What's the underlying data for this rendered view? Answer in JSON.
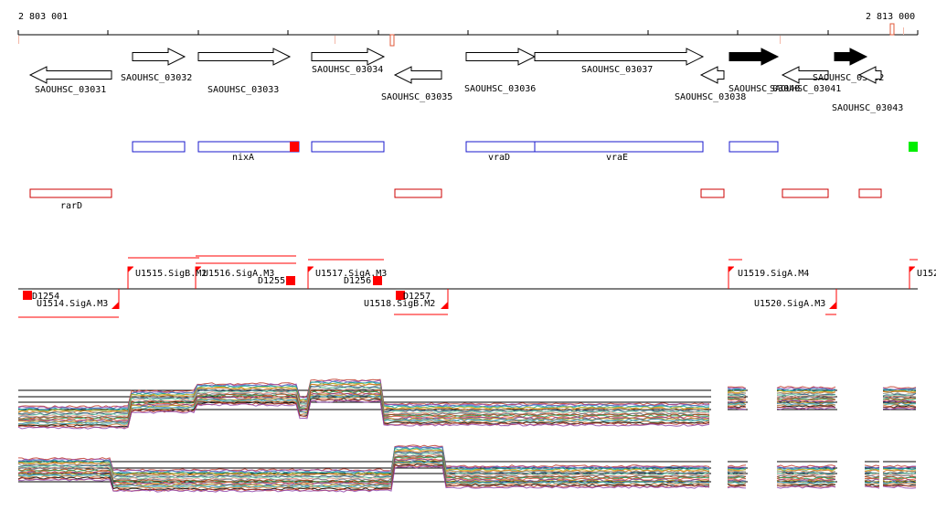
{
  "coords": {
    "start": "2 803 001",
    "end": "2 813 000"
  },
  "colors": {
    "gene_outline": "#000000",
    "gene_fill_open": "#ffffff",
    "gene_fill_solid": "#000000",
    "feature_blue": "#1a1acc",
    "feature_red": "#cc0000",
    "marker_red": "#ff0000",
    "marker_green": "#00ee00",
    "axis": "#000000"
  },
  "genes": [
    {
      "id": "SAOUHSC_03031",
      "strand": "-",
      "solid": false
    },
    {
      "id": "SAOUHSC_03032",
      "strand": "+",
      "solid": false
    },
    {
      "id": "SAOUHSC_03033",
      "strand": "+",
      "solid": false
    },
    {
      "id": "SAOUHSC_03034",
      "strand": "+",
      "solid": false
    },
    {
      "id": "SAOUHSC_03035",
      "strand": "-",
      "solid": false
    },
    {
      "id": "SAOUHSC_03036",
      "strand": "+",
      "solid": false
    },
    {
      "id": "SAOUHSC_03037",
      "strand": "+",
      "solid": false
    },
    {
      "id": "SAOUHSC_03038",
      "strand": "-",
      "solid": false
    },
    {
      "id": "SAOUHSC_03040",
      "strand": "+",
      "solid": true
    },
    {
      "id": "SAOUHSC_03041",
      "strand": "-",
      "solid": false
    },
    {
      "id": "SAOUHSC_03042",
      "strand": "+",
      "solid": true
    },
    {
      "id": "SAOUHSC_03043",
      "strand": "-",
      "solid": false
    }
  ],
  "operons": [
    {
      "label": "nixA"
    },
    {
      "label": "vraD"
    },
    {
      "label": "vraE"
    }
  ],
  "red_features": [
    {
      "label": "rarD"
    }
  ],
  "sites": [
    {
      "label": "U1515.SigB.M2"
    },
    {
      "label": "U1516.SigA.M3"
    },
    {
      "label": "U1517.SigA.M3"
    },
    {
      "label": "U1519.SigA.M4"
    },
    {
      "label": "U152"
    },
    {
      "label": "D1255"
    },
    {
      "label": "D1256"
    },
    {
      "label": "D1254"
    },
    {
      "label": "U1514.SigA.M3"
    },
    {
      "label": "D1257"
    },
    {
      "label": "U1518.SigB.M2"
    },
    {
      "label": "U1520.SigA.M3"
    }
  ]
}
